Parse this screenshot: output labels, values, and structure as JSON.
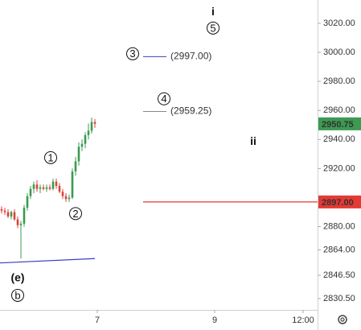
{
  "chart_data": {
    "type": "candlestick",
    "colors": {
      "up": "#3c9a52",
      "down": "#d9453b"
    },
    "xlim": [
      -0.5,
      98.25
    ],
    "ylim": [
      2822.7,
      3036
    ],
    "xticks": [
      {
        "value": 29.75,
        "label": "7"
      },
      {
        "value": 66.25,
        "label": "9"
      },
      {
        "value": 93.75,
        "label": "12:00"
      }
    ],
    "yticks": [
      {
        "value": 3020,
        "label": "3020.00"
      },
      {
        "value": 3000,
        "label": "3000.00"
      },
      {
        "value": 2980,
        "label": "2980.00"
      },
      {
        "value": 2960,
        "label": "2960.00"
      },
      {
        "value": 2940,
        "label": "2940.00"
      },
      {
        "value": 2920,
        "label": "2920.00"
      },
      {
        "value": 2880,
        "label": "2880.00"
      },
      {
        "value": 2864,
        "label": "2864.00"
      },
      {
        "value": 2846.5,
        "label": "2846.50"
      },
      {
        "value": 2830.5,
        "label": "2830.50"
      }
    ],
    "grid": false,
    "open": [
      2892,
      2891,
      2890,
      2887,
      2890,
      2885,
      2881,
      2882,
      2893,
      2901,
      2906,
      2909,
      2906,
      2907,
      2906,
      2907,
      2906,
      2911,
      2908,
      2904,
      2901,
      2899,
      2900,
      2918,
      2925,
      2935,
      2937,
      2943,
      2946,
      2952
    ],
    "high": [
      2894,
      2893,
      2892,
      2891,
      2892,
      2887,
      2884,
      2895,
      2903,
      2908,
      2911,
      2912,
      2909,
      2909,
      2909,
      2909,
      2913,
      2913,
      2910,
      2906,
      2903,
      2902,
      2920,
      2928,
      2938,
      2940,
      2945,
      2951,
      2955,
      2954
    ],
    "low": [
      2889,
      2888,
      2886,
      2885,
      2884,
      2879,
      2858,
      2880,
      2891,
      2899,
      2903,
      2904,
      2903,
      2905,
      2904,
      2905,
      2905,
      2906,
      2903,
      2899,
      2897,
      2897,
      2899,
      2915,
      2922,
      2932,
      2934,
      2940,
      2944,
      2948
    ],
    "close": [
      2891,
      2890,
      2887,
      2890,
      2885,
      2881,
      2882,
      2893,
      2901,
      2906,
      2909,
      2906,
      2907,
      2906,
      2907,
      2906,
      2911,
      2908,
      2904,
      2901,
      2899,
      2900,
      2918,
      2925,
      2935,
      2937,
      2943,
      2946,
      2952,
      2950.75
    ],
    "last_price": {
      "value": 2950.75,
      "color": "#3c9a52"
    },
    "level": {
      "value": 2897,
      "label": "2897.00",
      "color": "#e53935"
    },
    "targets": [
      {
        "value": 2997,
        "label": "(2997.00)",
        "color": "#3d3dc4"
      },
      {
        "value": 2959.25,
        "label": "(2959.25)",
        "color": "#888888"
      }
    ],
    "trendline": {
      "x": [
        -0.5,
        29
      ],
      "values": [
        2855,
        2858
      ],
      "color": "#3d3dc4"
    },
    "annotations": [
      {
        "text": "i",
        "x": 65.75,
        "y": 3028,
        "circled": false
      },
      {
        "text": "5",
        "x": 65.75,
        "y": 3016.7,
        "circled": true
      },
      {
        "text": "3",
        "x": 40.75,
        "y": 2999,
        "circled": true
      },
      {
        "text": "4",
        "x": 50.5,
        "y": 2968,
        "circled": true
      },
      {
        "text": "1",
        "x": 15.25,
        "y": 2927.5,
        "circled": true
      },
      {
        "text": "2",
        "x": 23,
        "y": 2889,
        "circled": true
      },
      {
        "text": "ii",
        "x": 78.25,
        "y": 2939,
        "circled": false
      },
      {
        "text": "(e)",
        "x": 5,
        "y": 2845,
        "circled": false
      },
      {
        "text": "b",
        "x": 5,
        "y": 2832.7,
        "circled": true
      }
    ]
  }
}
